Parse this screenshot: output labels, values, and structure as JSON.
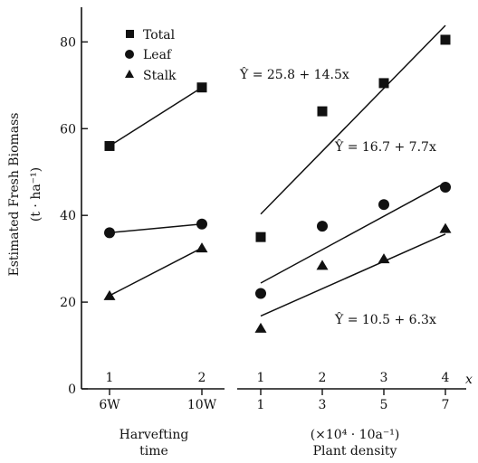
{
  "chart_data": [
    {
      "type": "scatter",
      "panel": "Harvesting time",
      "xlabel": [
        "Harvefting",
        "time"
      ],
      "ylabel": "Estimated Fresh Biomass",
      "yunit": "(t · ha⁻¹)",
      "ylim": [
        0,
        88
      ],
      "yticks": [
        0,
        20,
        40,
        60,
        80
      ],
      "xtick_codes": [
        "1",
        "2"
      ],
      "xtick_labels": [
        "6W",
        "10W"
      ],
      "x": [
        1,
        2
      ],
      "series": [
        {
          "name": "Total",
          "marker": "square",
          "values": [
            56,
            69.5
          ]
        },
        {
          "name": "Leaf",
          "marker": "circle",
          "values": [
            36,
            38
          ]
        },
        {
          "name": "Stalk",
          "marker": "triangle",
          "values": [
            21.5,
            32.5
          ]
        }
      ]
    },
    {
      "type": "scatter",
      "panel": "Plant density",
      "xlabel": [
        "(×10⁴ · 10a⁻¹)",
        "Plant density"
      ],
      "xtick_codes": [
        "1",
        "2",
        "3",
        "4"
      ],
      "xtick_labels": [
        "1",
        "3",
        "5",
        "7"
      ],
      "x_axis_symbol": "x",
      "x": [
        1,
        2,
        3,
        4
      ],
      "series": [
        {
          "name": "Total",
          "marker": "square",
          "values": [
            35,
            64,
            70.5,
            80.5
          ],
          "fit": {
            "a": 25.8,
            "b": 14.5
          },
          "equation": "Ŷ = 25.8 + 14.5x"
        },
        {
          "name": "Leaf",
          "marker": "circle",
          "values": [
            22,
            37.5,
            42.5,
            46.5
          ],
          "fit": {
            "a": 16.7,
            "b": 7.7
          },
          "equation": "Ŷ = 16.7 + 7.7x"
        },
        {
          "name": "Stalk",
          "marker": "triangle",
          "values": [
            14,
            28.5,
            30,
            37
          ],
          "fit": {
            "a": 10.5,
            "b": 6.3
          },
          "equation": "Ŷ = 10.5 + 6.3x"
        }
      ]
    }
  ],
  "legend": [
    {
      "label": "Total",
      "marker": "square"
    },
    {
      "label": "Leaf",
      "marker": "circle"
    },
    {
      "label": "Stalk",
      "marker": "triangle"
    }
  ]
}
